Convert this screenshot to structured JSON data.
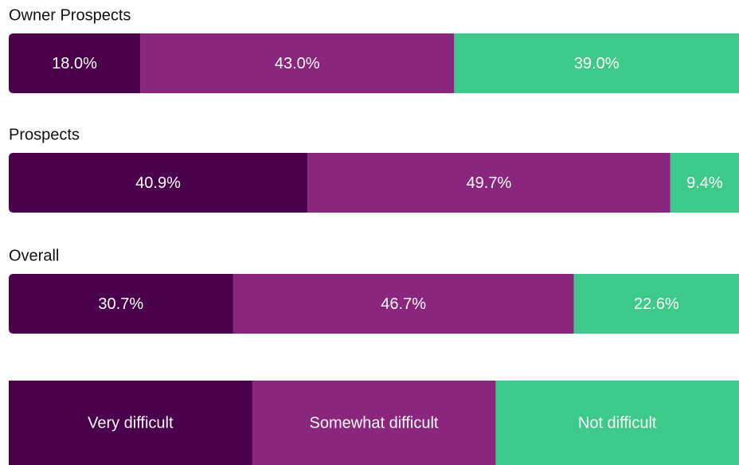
{
  "chart_data": {
    "type": "stacked-bar",
    "categories": [
      "Owner Prospects",
      "Prospects",
      "Overall"
    ],
    "series": [
      {
        "name": "Very difficult",
        "color": "#4b004e",
        "values": [
          18.0,
          40.9,
          30.7
        ],
        "value_labels": [
          "18.0%",
          "40.9%",
          "30.7%"
        ]
      },
      {
        "name": "Somewhat difficult",
        "color": "#8b267e",
        "values": [
          43.0,
          49.7,
          46.7
        ],
        "value_labels": [
          "43.0%",
          "49.7%",
          "46.7%"
        ]
      },
      {
        "name": "Not difficult",
        "color": "#3cc98a",
        "values": [
          39.0,
          9.4,
          22.6
        ],
        "value_labels": [
          "39.0%",
          "9.4%",
          "22.6%"
        ]
      }
    ]
  }
}
